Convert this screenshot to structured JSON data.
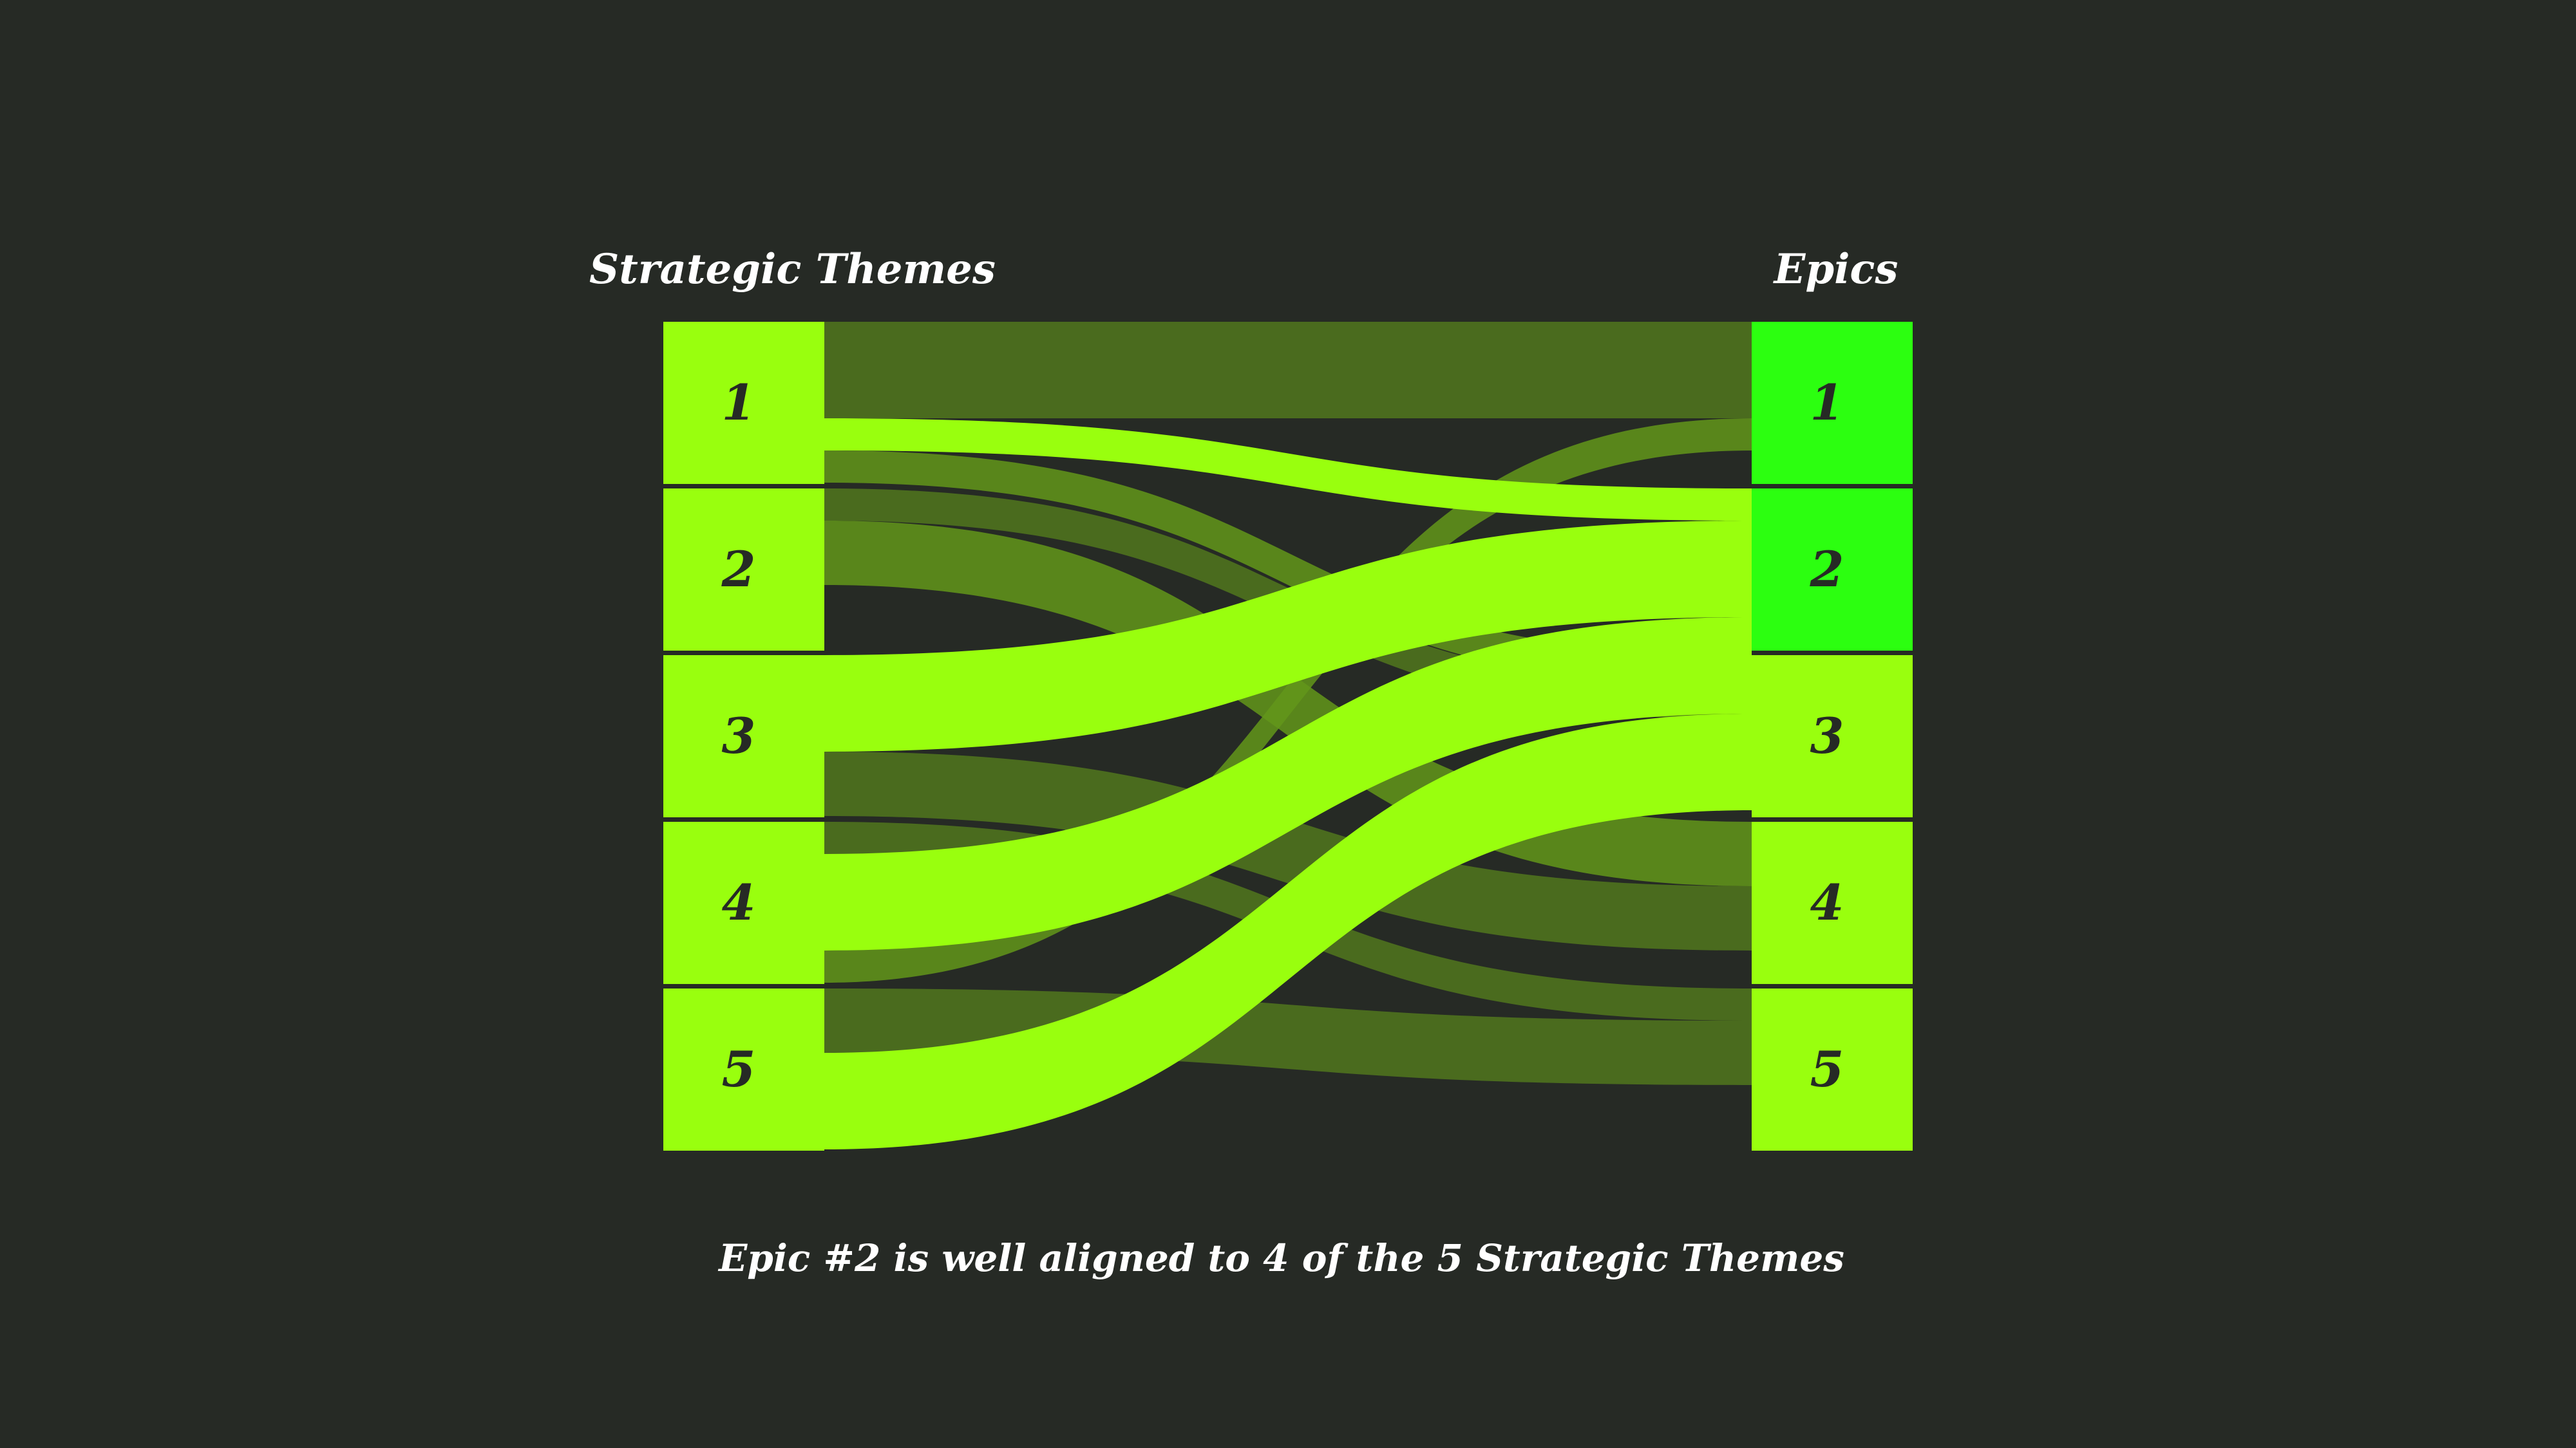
{
  "diagram": {
    "left_title": "Strategic Themes",
    "right_title": "Epics",
    "caption": "Epic #2 is well aligned to 4 of the 5 Strategic Themes",
    "themes": [
      {
        "label": "1",
        "color": "#99ff0e"
      },
      {
        "label": "2",
        "color": "#99ff0e"
      },
      {
        "label": "3",
        "color": "#99ff0e"
      },
      {
        "label": "4",
        "color": "#99ff0e"
      },
      {
        "label": "5",
        "color": "#99ff0e"
      }
    ],
    "epics": [
      {
        "label": "1",
        "color": "#2cff10"
      },
      {
        "label": "2",
        "color": "#2cff10"
      },
      {
        "label": "3",
        "color": "#99ff0e"
      },
      {
        "label": "4",
        "color": "#99ff0e"
      },
      {
        "label": "5",
        "color": "#99ff0e"
      }
    ],
    "links": [
      {
        "theme": 1,
        "epic": 1,
        "weight": 3,
        "highlight": false
      },
      {
        "theme": 1,
        "epic": 2,
        "weight": 1,
        "highlight": true
      },
      {
        "theme": 1,
        "epic": 3,
        "weight": 1,
        "highlight": false
      },
      {
        "theme": 2,
        "epic": 3,
        "weight": 1,
        "highlight": false
      },
      {
        "theme": 2,
        "epic": 4,
        "weight": 2,
        "highlight": false
      },
      {
        "theme": 3,
        "epic": 2,
        "weight": 3,
        "highlight": true
      },
      {
        "theme": 3,
        "epic": 4,
        "weight": 2,
        "highlight": false
      },
      {
        "theme": 4,
        "epic": 5,
        "weight": 1,
        "highlight": false
      },
      {
        "theme": 4,
        "epic": 2,
        "weight": 3,
        "highlight": true
      },
      {
        "theme": 4,
        "epic": 1,
        "weight": 1,
        "highlight": false
      },
      {
        "theme": 5,
        "epic": 5,
        "weight": 2,
        "highlight": false
      },
      {
        "theme": 5,
        "epic": 2,
        "weight": 3,
        "highlight": true
      }
    ],
    "colors": {
      "background": "#262a25",
      "node": "#99ff0e",
      "highlight_link": "#99ff0e",
      "dim_link": "#4a6b1e",
      "mid_link": "#63961a",
      "label_text": "#262a25",
      "title_text": "#ffffff"
    }
  }
}
